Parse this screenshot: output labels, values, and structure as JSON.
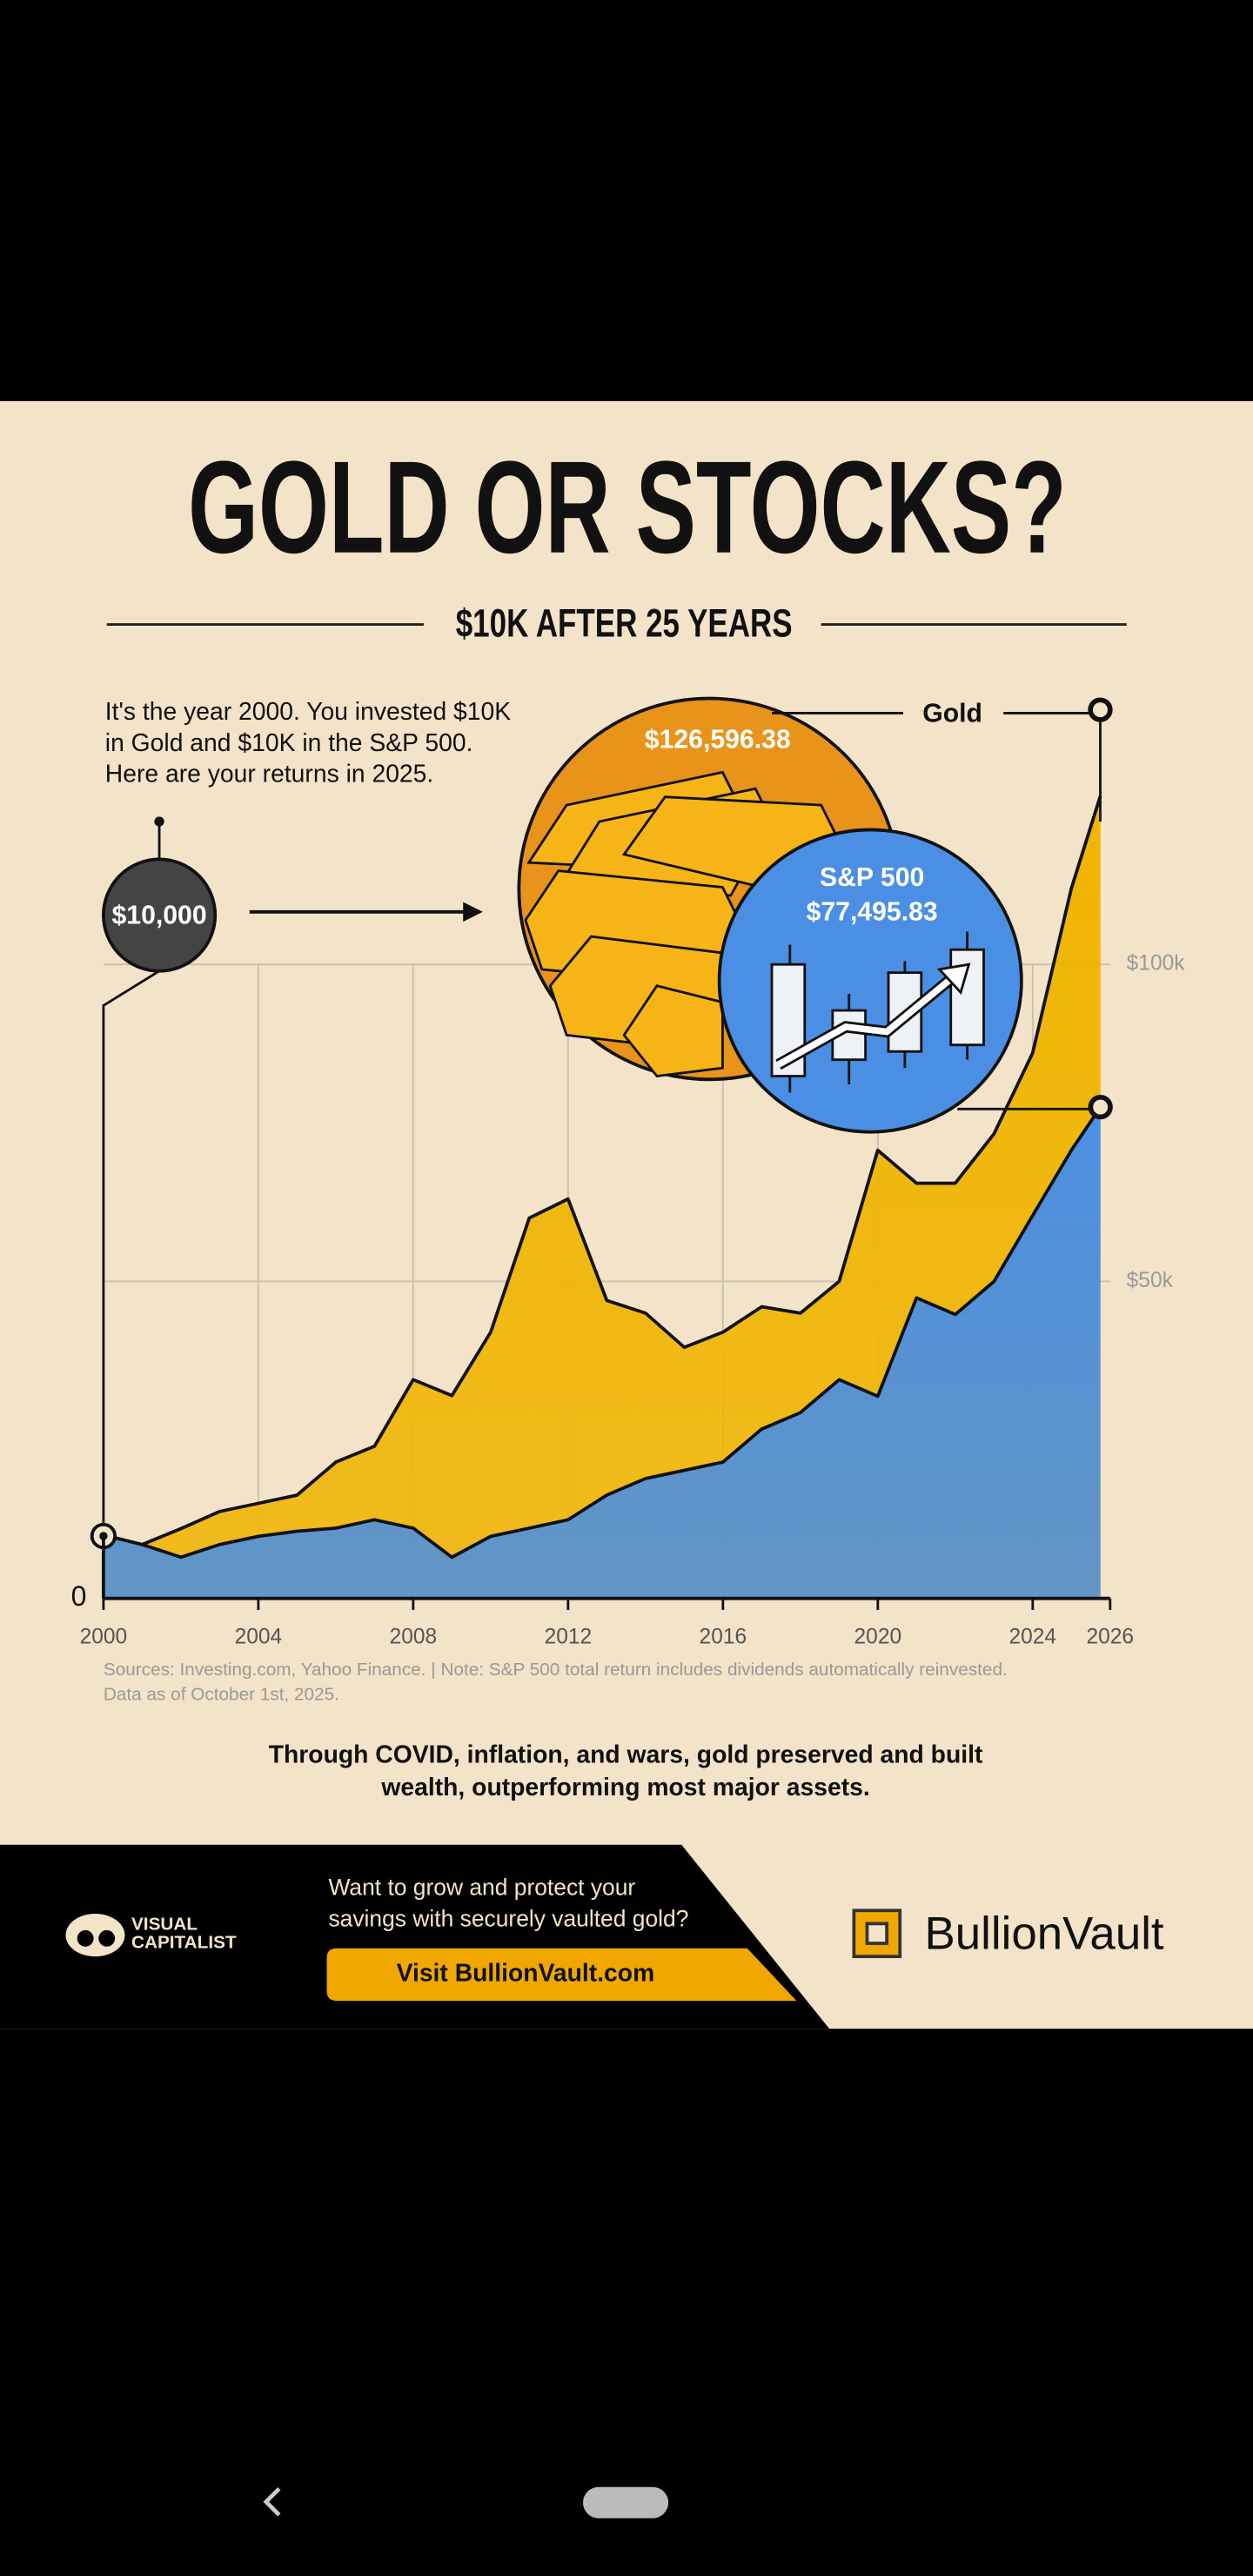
{
  "chart_data": {
    "type": "area",
    "title": "GOLD OR STOCKS?",
    "subtitle": "$10K AFTER 25 YEARS",
    "intro": [
      "It's the year 2000. You invested $10K",
      "in Gold and $10K in the S&P 500.",
      "Here are your returns in 2025."
    ],
    "annotations": {
      "start": "$10,000",
      "gold_name": "Gold",
      "gold_value": "$126,596.38",
      "sp_name": "S&P 500",
      "sp_value": "$77,495.83"
    },
    "x": [
      2000,
      2001,
      2002,
      2003,
      2004,
      2005,
      2006,
      2007,
      2008,
      2009,
      2010,
      2011,
      2012,
      2013,
      2014,
      2015,
      2016,
      2017,
      2018,
      2019,
      2020,
      2021,
      2022,
      2023,
      2024,
      2025,
      2025.75
    ],
    "series": [
      {
        "name": "Gold",
        "color": "#f0b400",
        "values": [
          10000,
          8500,
          11000,
          13700,
          15000,
          16300,
          21500,
          24000,
          34500,
          32000,
          42000,
          60000,
          63000,
          47000,
          45000,
          39600,
          42000,
          46000,
          45000,
          50000,
          70700,
          65500,
          65500,
          73300,
          86000,
          112000,
          126596.38
        ]
      },
      {
        "name": "S&P 500",
        "color": "#4a8fe3",
        "values": [
          10000,
          8500,
          6500,
          8500,
          9800,
          10600,
          11100,
          12400,
          11100,
          6500,
          9800,
          11100,
          12400,
          16300,
          18900,
          20200,
          21500,
          26700,
          29300,
          34500,
          31900,
          47400,
          44800,
          50000,
          60400,
          70700,
          77495.83
        ]
      }
    ],
    "xlim": [
      2000,
      2026
    ],
    "xticks": [
      2000,
      2004,
      2008,
      2012,
      2016,
      2020,
      2024,
      2026
    ],
    "ylim": [
      0,
      140000
    ],
    "yticks": [
      0,
      {
        "value": 50000,
        "label": "$50k"
      },
      {
        "value": 100000,
        "label": "$100k"
      }
    ],
    "grid": true,
    "sources": [
      "Sources: Investing.com, Yahoo Finance. | Note: S&P 500 total return includes dividends automatically reinvested.",
      "Data as of October 1st, 2025."
    ],
    "takeaway": [
      "Through COVID, inflation, and wars, gold preserved and built",
      "wealth, outperforming most major assets."
    ]
  },
  "footer": {
    "logo": [
      "VISUAL",
      "CAPITALIST"
    ],
    "ad": [
      "Want to grow and protect your",
      "savings with securely vaulted gold?"
    ],
    "button": "Visit BullionVault.com",
    "brand": "BullionVault"
  }
}
